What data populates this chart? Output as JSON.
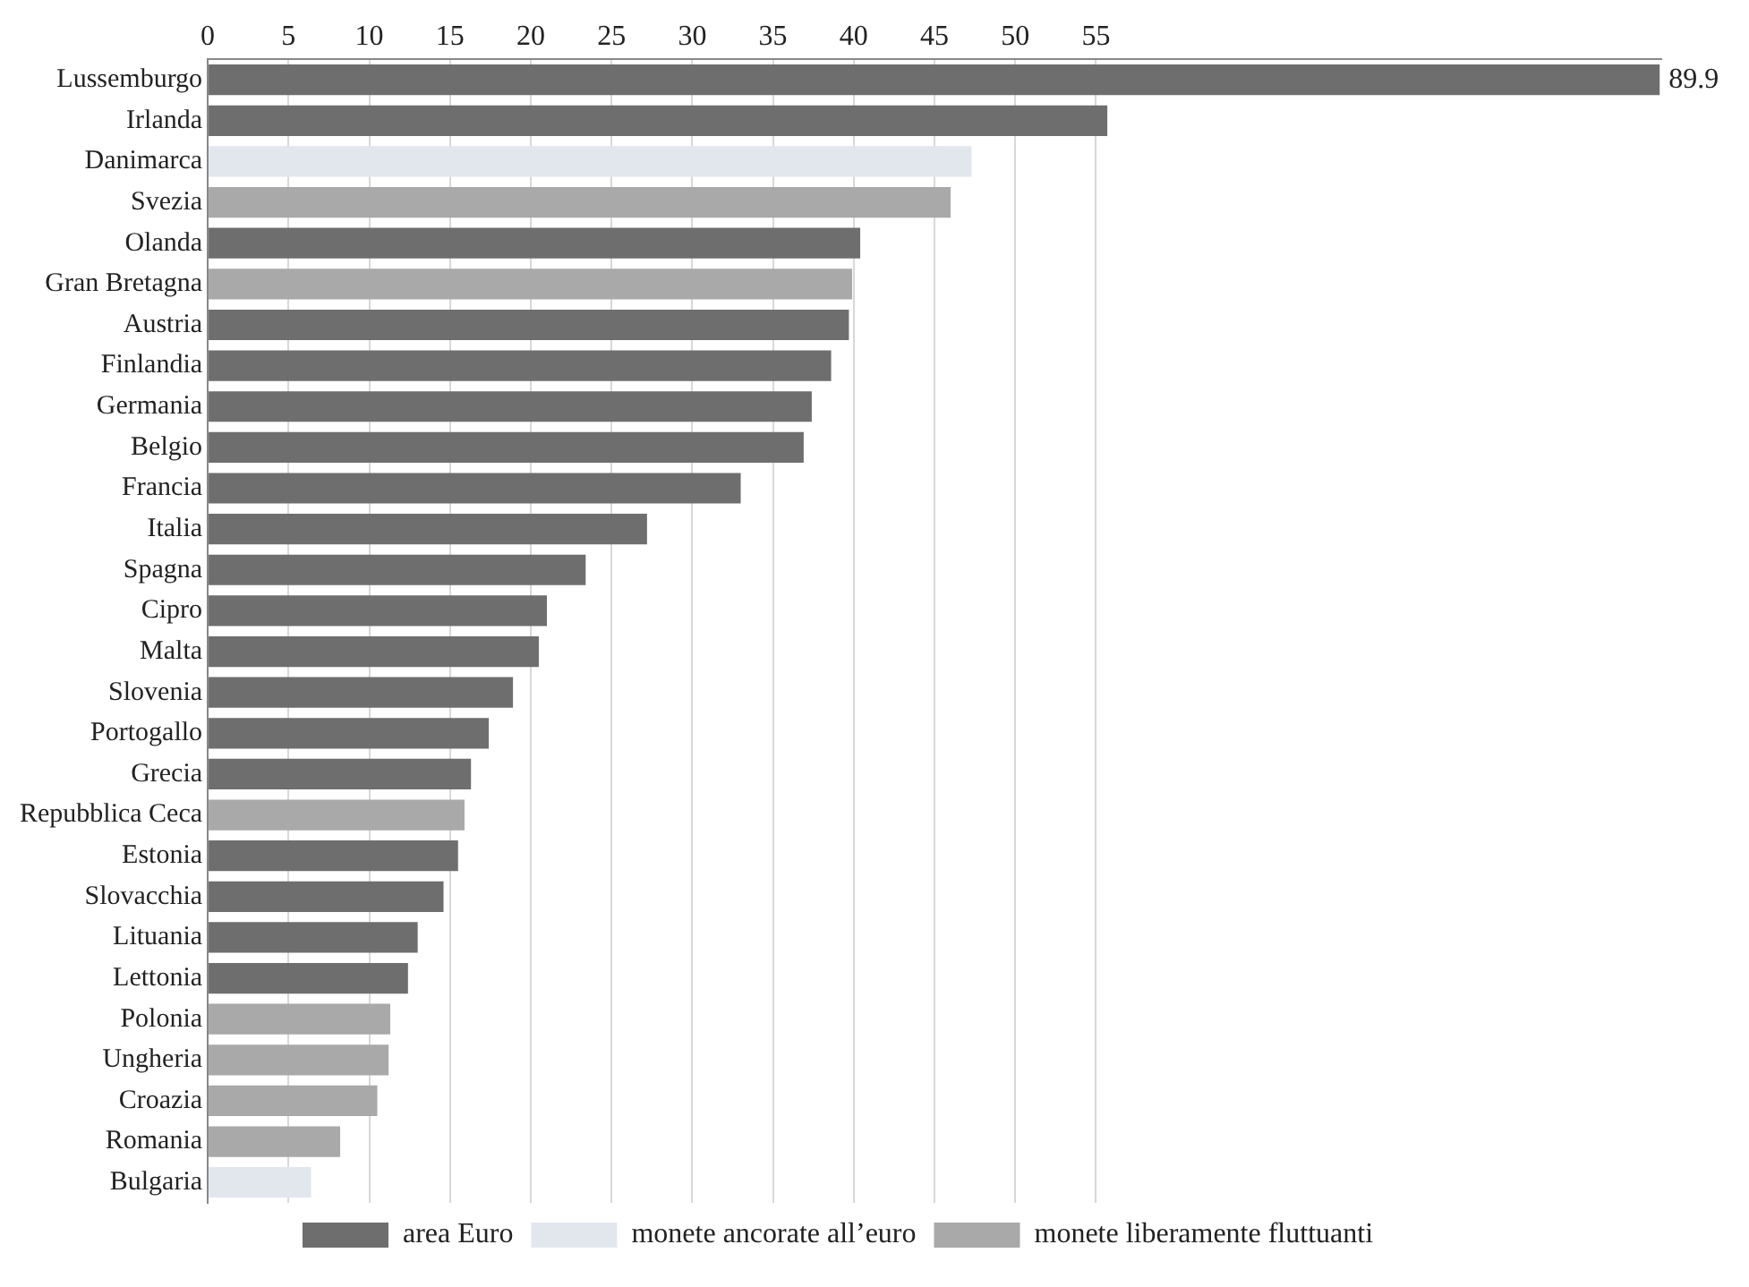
{
  "chart_data": {
    "type": "bar",
    "orientation": "horizontal",
    "stacked": true,
    "categories": [
      "Lussemburgo",
      "Irlanda",
      "Danimarca",
      "Svezia",
      "Olanda",
      "Gran Bretagna",
      "Austria",
      "Finlandia",
      "Germania",
      "Belgio",
      "Francia",
      "Italia",
      "Spagna",
      "Cipro",
      "Malta",
      "Slovenia",
      "Portogallo",
      "Grecia",
      "Repubblica Ceca",
      "Estonia",
      "Slovacchia",
      "Lituania",
      "Lettonia",
      "Polonia",
      "Ungheria",
      "Croazia",
      "Romania",
      "Bulgaria"
    ],
    "series": [
      {
        "name": "area Euro",
        "color": "#6e6e6e",
        "values": [
          89.9,
          55.7,
          null,
          null,
          40.4,
          null,
          39.7,
          38.6,
          37.4,
          36.9,
          33.0,
          27.2,
          23.4,
          21.0,
          20.5,
          18.9,
          17.4,
          16.3,
          null,
          15.5,
          14.6,
          13.0,
          12.4,
          null,
          null,
          null,
          null,
          null
        ],
        "value_labels": [
          "89.9",
          null,
          null,
          null,
          null,
          null,
          null,
          null,
          null,
          null,
          null,
          null,
          null,
          null,
          null,
          null,
          null,
          null,
          null,
          null,
          null,
          null,
          null,
          null,
          null,
          null,
          null,
          null
        ]
      },
      {
        "name": "monete ancorate all’euro",
        "color": "#e2e7ee",
        "values": [
          null,
          null,
          47.3,
          null,
          null,
          null,
          null,
          null,
          null,
          null,
          null,
          null,
          null,
          null,
          null,
          null,
          null,
          null,
          null,
          null,
          null,
          null,
          null,
          null,
          null,
          null,
          null,
          6.4
        ]
      },
      {
        "name": "monete liberamente fluttuanti",
        "color": "#a9a9a9",
        "values": [
          null,
          null,
          null,
          46.0,
          null,
          39.9,
          null,
          null,
          null,
          null,
          null,
          null,
          null,
          null,
          null,
          null,
          null,
          null,
          15.9,
          null,
          null,
          null,
          null,
          11.3,
          11.2,
          10.5,
          8.2,
          null
        ]
      }
    ],
    "xlim": [
      0,
      90
    ],
    "xticks": [
      0,
      5,
      10,
      15,
      20,
      25,
      30,
      35,
      40,
      45,
      50,
      55
    ],
    "grid": "x",
    "legend": "bottom"
  }
}
